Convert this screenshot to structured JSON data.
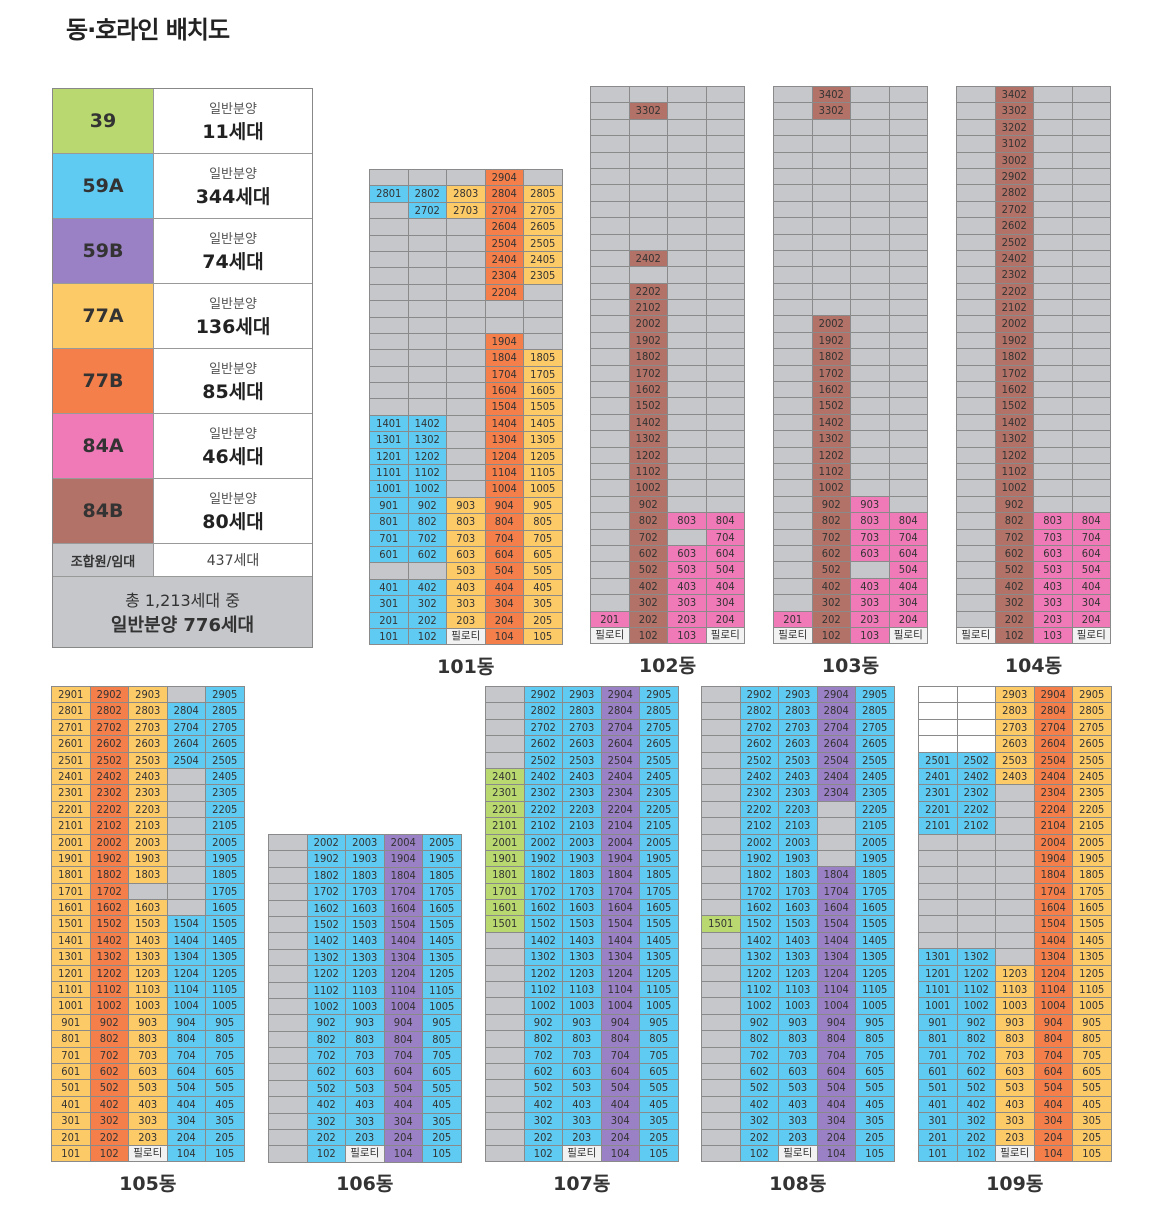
{
  "title": "동·호라인 배치도",
  "pilotis_label": "필로티",
  "gray_color": "#c6c7cb",
  "legend": {
    "types": [
      {
        "code": "A",
        "label": "39",
        "sub": "일반분양",
        "count": "11세대",
        "color": "#b9d870"
      },
      {
        "code": "B",
        "label": "59A",
        "sub": "일반분양",
        "count": "344세대",
        "color": "#5fcbf2"
      },
      {
        "code": "C",
        "label": "59B",
        "sub": "일반분양",
        "count": "74세대",
        "color": "#9a80c4"
      },
      {
        "code": "D",
        "label": "77A",
        "sub": "일반분양",
        "count": "136세대",
        "color": "#fdca68"
      },
      {
        "code": "E",
        "label": "77B",
        "sub": "일반분양",
        "count": "85세대",
        "color": "#f47f4b"
      },
      {
        "code": "F",
        "label": "84A",
        "sub": "일반분양",
        "count": "46세대",
        "color": "#f079b8"
      },
      {
        "code": "G",
        "label": "84B",
        "sub": "일반분양",
        "count": "80세대",
        "color": "#b27267"
      }
    ],
    "member_label": "조합원/임대",
    "member_count": "437세대",
    "total_line1": "총 1,213세대 중",
    "total_line2": "일반분양 776세대"
  },
  "buildings": [
    {
      "name": "101동",
      "rows": [
        "- - - 2904E -",
        "2801B 2802B 2803D 2804E 2805D",
        "- 2702B 2703D 2704E 2705D",
        "- - - 2604E 2605D",
        "- - - 2504E 2505D",
        "- - - 2404E 2405D",
        "- - - 2304E 2305D",
        "- - - 2204E -",
        "- - - - -",
        "- - - - -",
        "- - - 1904E -",
        "- - - 1804E 1805D",
        "- - - 1704E 1705D",
        "- - - 1604E 1605D",
        "- - - 1504E 1505D",
        "1401B 1402B - 1404E 1405D",
        "1301B 1302B - 1304E 1305D",
        "1201B 1202B - 1204E 1205D",
        "1101B 1102B - 1104E 1105D",
        "1001B 1002B - 1004E 1005D",
        "901B 902B 903D 904E 905D",
        "801B 802B 803D 804E 805D",
        "701B 702B 703D 704E 705D",
        "601B 602B 603D 604E 605D",
        "- - 503D 504E 505D",
        "401B 402B 403D 404E 405D",
        "301B 302B 303D 304E 305D",
        "201B 202B 203D 204E 205D",
        "101B 102B P 104E 105D"
      ]
    },
    {
      "name": "102동",
      "rows": [
        "- - - -",
        "- 3302G - -",
        "- - - -",
        "- - - -",
        "- - - -",
        "- - - -",
        "- - - -",
        "- - - -",
        "- - - -",
        "- - - -",
        "- 2402G - -",
        "- - - -",
        "- 2202G - -",
        "- 2102G - -",
        "- 2002G - -",
        "- 1902G - -",
        "- 1802G - -",
        "- 1702G - -",
        "- 1602G - -",
        "- 1502G - -",
        "- 1402G - -",
        "- 1302G - -",
        "- 1202G - -",
        "- 1102G - -",
        "- 1002G - -",
        "- 902G - -",
        "- 802G 803F 804F",
        "- 702G - 704F",
        "- 602G 603F 604F",
        "- 502G 503F 504F",
        "- 402G 403F 404F",
        "- 302G 303F 304F",
        "201F 202G 203F 204F",
        "P 102G 103F P"
      ]
    },
    {
      "name": "103동",
      "rows": [
        "- 3402G - -",
        "- 3302G - -",
        "- - - -",
        "- - - -",
        "- - - -",
        "- - - -",
        "- - - -",
        "- - - -",
        "- - - -",
        "- - - -",
        "- - - -",
        "- - - -",
        "- - - -",
        "- - - -",
        "- 2002G - -",
        "- 1902G - -",
        "- 1802G - -",
        "- 1702G - -",
        "- 1602G - -",
        "- 1502G - -",
        "- 1402G - -",
        "- 1302G - -",
        "- 1202G - -",
        "- 1102G - -",
        "- 1002G - -",
        "- 902G 903F -",
        "- 802G 803F 804F",
        "- 702G 703F 704F",
        "- 602G 603F 604F",
        "- 502G - 504F",
        "- 402G 403F 404F",
        "- 302G 303F 304F",
        "201F 202G 203F 204F",
        "P 102G 103F P"
      ]
    },
    {
      "name": "104동",
      "rows": [
        "- 3402G - -",
        "- 3302G - -",
        "- 3202G - -",
        "- 3102G - -",
        "- 3002G - -",
        "- 2902G - -",
        "- 2802G - -",
        "- 2702G - -",
        "- 2602G - -",
        "- 2502G - -",
        "- 2402G - -",
        "- 2302G - -",
        "- 2202G - -",
        "- 2102G - -",
        "- 2002G - -",
        "- 1902G - -",
        "- 1802G - -",
        "- 1702G - -",
        "- 1602G - -",
        "- 1502G - -",
        "- 1402G - -",
        "- 1302G - -",
        "- 1202G - -",
        "- 1102G - -",
        "- 1002G - -",
        "- 902G - -",
        "- 802G 803F 804F",
        "- 702G 703F 704F",
        "- 602G 603F 604F",
        "- 502G 503F 504F",
        "- 402G 403F 404F",
        "- 302G 303F 304F",
        "- 202G 203F 204F",
        "P 102G 103F P"
      ]
    },
    {
      "name": "105동",
      "rows": [
        "2901D 2902E 2903D - 2905B",
        "2801D 2802E 2803D 2804B 2805B",
        "2701D 2702E 2703D 2704B 2705B",
        "2601D 2602E 2603D 2604B 2605B",
        "2501D 2502E 2503D 2504B 2505B",
        "2401D 2402E 2403D - 2405B",
        "2301D 2302E 2303D - 2305B",
        "2201D 2202E 2203D - 2205B",
        "2101D 2102E 2103D - 2105B",
        "2001D 2002E 2003D - 2005B",
        "1901D 1902E 1903D - 1905B",
        "1801D 1802E 1803D - 1805B",
        "1701D 1702E - - 1705B",
        "1601D 1602E 1603D - 1605B",
        "1501D 1502E 1503D 1504B 1505B",
        "1401D 1402E 1403D 1404B 1405B",
        "1301D 1302E 1303D 1304B 1305B",
        "1201D 1202E 1203D 1204B 1205B",
        "1101D 1102E 1103D 1104B 1105B",
        "1001D 1002E 1003D 1004B 1005B",
        "901D 902E 903D 904B 905B",
        "801D 802E 803D 804B 805B",
        "701D 702E 703D 704B 705B",
        "601D 602E 603D 604B 605B",
        "501D 502E 503D 504B 505B",
        "401D 402E 403D 404B 405B",
        "301D 302E 303D 304B 305B",
        "201D 202E 203D 204B 205B",
        "101D 102E P 104B 105B"
      ]
    },
    {
      "name": "106동",
      "rows": [
        "- 2002B 2003B 2004C 2005B",
        "- 1902B 1903B 1904C 1905B",
        "- 1802B 1803B 1804C 1805B",
        "- 1702B 1703B 1704C 1705B",
        "- 1602B 1603B 1604C 1605B",
        "- 1502B 1503B 1504C 1505B",
        "- 1402B 1403B 1404C 1405B",
        "- 1302B 1303B 1304C 1305B",
        "- 1202B 1203B 1204C 1205B",
        "- 1102B 1103B 1104C 1105B",
        "- 1002B 1003B 1004C 1005B",
        "- 902B 903B 904C 905B",
        "- 802B 803B 804C 805B",
        "- 702B 703B 704C 705B",
        "- 602B 603B 604C 605B",
        "- 502B 503B 504C 505B",
        "- 402B 403B 404C 405B",
        "- 302B 303B 304C 305B",
        "- 202B 203B 204C 205B",
        "- 102B P 104C 105B"
      ]
    },
    {
      "name": "107동",
      "rows": [
        "- 2902B 2903B 2904C 2905B",
        "- 2802B 2803B 2804C 2805B",
        "- 2702B 2703B 2704C 2705B",
        "- 2602B 2603B 2604C 2605B",
        "- 2502B 2503B 2504C 2505B",
        "2401A 2402B 2403B 2404C 2405B",
        "2301A 2302B 2303B 2304C 2305B",
        "2201A 2202B 2203B 2204C 2205B",
        "2101A 2102B 2103B 2104C 2105B",
        "2001A 2002B 2003B 2004C 2005B",
        "1901A 1902B 1903B 1904C 1905B",
        "1801A 1802B 1803B 1804C 1805B",
        "1701A 1702B 1703B 1704C 1705B",
        "1601A 1602B 1603B 1604C 1605B",
        "1501A 1502B 1503B 1504C 1505B",
        "- 1402B 1403B 1404C 1405B",
        "- 1302B 1303B 1304C 1305B",
        "- 1202B 1203B 1204C 1205B",
        "- 1102B 1103B 1104C 1105B",
        "- 1002B 1003B 1004C 1005B",
        "- 902B 903B 904C 905B",
        "- 802B 803B 804C 805B",
        "- 702B 703B 704C 705B",
        "- 602B 603B 604C 605B",
        "- 502B 503B 504C 505B",
        "- 402B 403B 404C 405B",
        "- 302B 303B 304C 305B",
        "- 202B 203B 204C 205B",
        "- 102B P 104C 105B"
      ]
    },
    {
      "name": "108동",
      "rows": [
        "- 2902B 2903B 2904C 2905B",
        "- 2802B 2803B 2804C 2805B",
        "- 2702B 2703B 2704C 2705B",
        "- 2602B 2603B 2604C 2605B",
        "- 2502B 2503B 2504C 2505B",
        "- 2402B 2403B 2404C 2405B",
        "- 2302B 2303B 2304C 2305B",
        "- 2202B 2203B - 2205B",
        "- 2102B 2103B - 2105B",
        "- 2002B 2003B - 2005B",
        "- 1902B 1903B - 1905B",
        "- 1802B 1803B 1804C 1805B",
        "- 1702B 1703B 1704C 1705B",
        "- 1602B 1603B 1604C 1605B",
        "1501A 1502B 1503B 1504C 1505B",
        "- 1402B 1403B 1404C 1405B",
        "- 1302B 1303B 1304C 1305B",
        "- 1202B 1203B 1204C 1205B",
        "- 1102B 1103B 1104C 1105B",
        "- 1002B 1003B 1004C 1005B",
        "- 902B 903B 904C 905B",
        "- 802B 803B 804C 805B",
        "- 702B 703B 704C 705B",
        "- 602B 603B 604C 605B",
        "- 502B 503B 504C 505B",
        "- 402B 403B 404C 405B",
        "- 302B 303B 304C 305B",
        "- 202B 203B 204C 205B",
        "- 102B P 104C 105B"
      ]
    },
    {
      "name": "109동",
      "rows": [
        ". . 2903D 2904E 2905D",
        ". . 2803D 2804E 2805D",
        ". . 2703D 2704E 2705D",
        ". . 2603D 2604E 2605D",
        "2501B 2502B 2503D 2504E 2505D",
        "2401B 2402B 2403D 2404E 2405D",
        "2301B 2302B - 2304E 2305D",
        "2201B 2202B - 2204E 2205D",
        "2101B 2102B - 2104E 2105D",
        "- - - 2004E 2005D",
        "- - - 1904E 1905D",
        "- - - 1804E 1805D",
        "- - - 1704E 1705D",
        "- - - 1604E 1605D",
        "- - - 1504E 1505D",
        "- - - 1404E 1405D",
        "1301B 1302B - 1304E 1305D",
        "1201B 1202B 1203D 1204E 1205D",
        "1101B 1102B 1103D 1104E 1105D",
        "1001B 1002B 1003D 1004E 1005D",
        "901B 902B 903D 904E 905D",
        "801B 802B 803D 804E 805D",
        "701B 702B 703D 704E 705D",
        "601B 602B 603D 604E 605D",
        "501B 502B 503D 504E 505D",
        "401B 402B 403D 404E 405D",
        "301B 302B 303D 304E 305D",
        "201B 202B 203D 204E 205D",
        "101B 102B P 104E 105D"
      ]
    }
  ]
}
